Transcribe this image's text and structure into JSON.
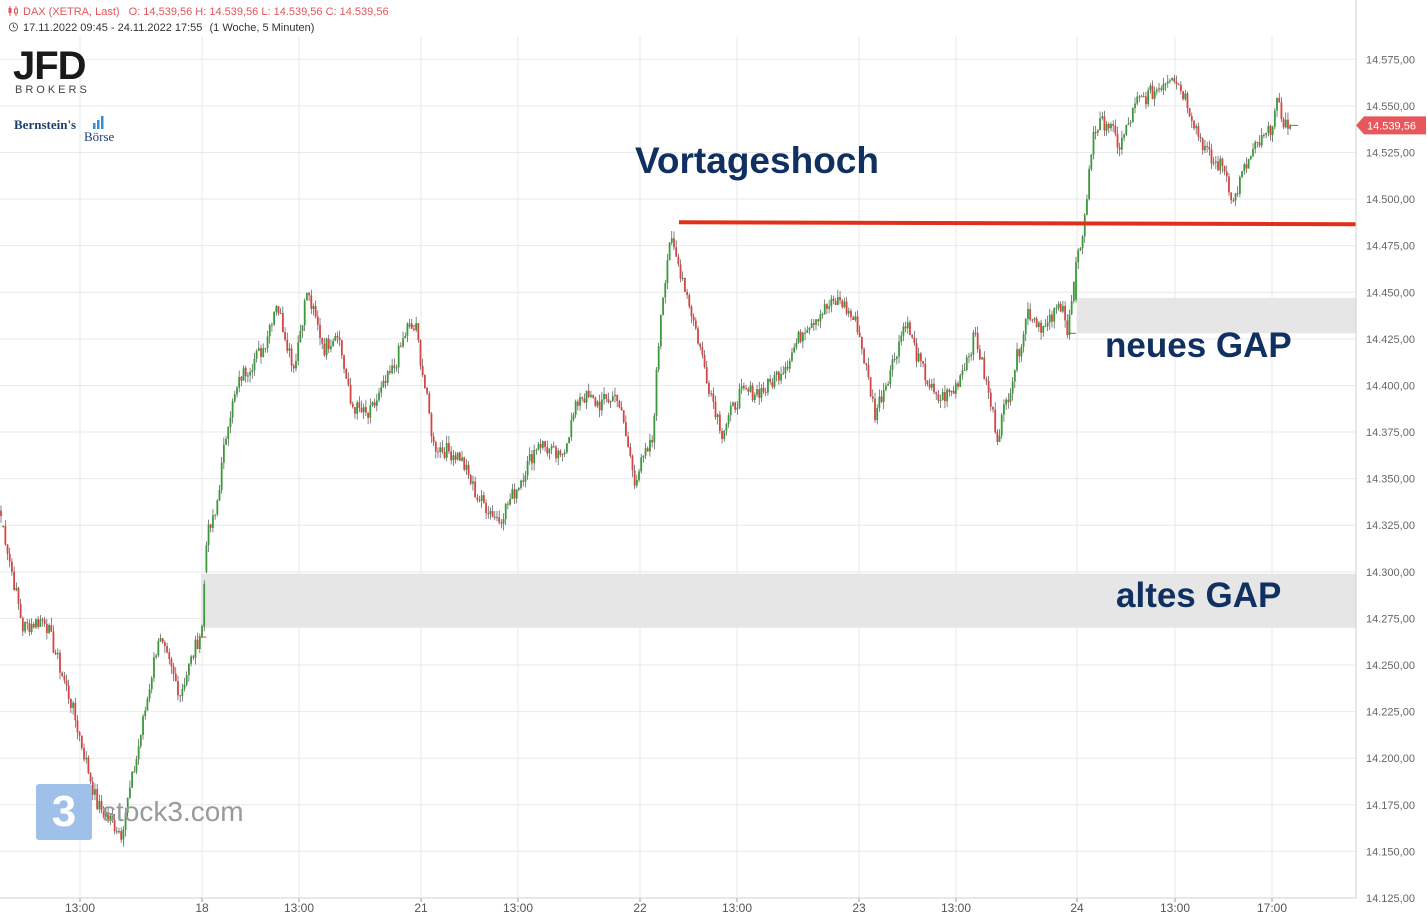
{
  "header": {
    "instrument": "DAX (XETRA, Last)",
    "ohlc": "O: 14,539,56  H: 14.539,56  L: 14.539,56  C: 14.539,56",
    "range": "17.11.2022 09:45 - 24.11.2022 17:55",
    "interval": "(1 Woche, 5 Minuten)"
  },
  "logos": {
    "jfd": "JFD",
    "brokers": "BROKERS",
    "bernstein": "Bernstein's",
    "boerse": "Börse"
  },
  "watermark": {
    "badge": "3",
    "text": "stock3.com"
  },
  "annotations": {
    "vortageshoch": "Vortageshoch",
    "neues_gap": "neues GAP",
    "altes_gap": "altes GAP"
  },
  "colors": {
    "up": "#3a9a3a",
    "down": "#d64545",
    "resistance_line": "#e03018",
    "gap_zone": "#e6e6e6",
    "price_tag": "#e8575c",
    "annotation": "#0f3060",
    "grid": "#e9e9e9"
  },
  "chart_data": {
    "type": "candlestick",
    "title": "DAX (XETRA, Last)",
    "ylim": [
      14125,
      14587.5
    ],
    "y_ticks": [
      "14.575,00",
      "14.550,00",
      "14.525,00",
      "14.500,00",
      "14.475,00",
      "14.450,00",
      "14.425,00",
      "14.400,00",
      "14.375,00",
      "14.350,00",
      "14.325,00",
      "14.300,00",
      "14.275,00",
      "14.250,00",
      "14.225,00",
      "14.200,00",
      "14.175,00",
      "14.150,00",
      "14.125,00"
    ],
    "x_ticks": [
      "13:00",
      "18",
      "13:00",
      "21",
      "13:00",
      "22",
      "13:00",
      "23",
      "13:00",
      "24",
      "13:00",
      "17:00"
    ],
    "last_price": 14539.56,
    "last_price_label": "14.539,56",
    "resistance_level": 14487,
    "gaps": [
      {
        "name": "neues GAP",
        "from": 14428,
        "to": 14447
      },
      {
        "name": "altes GAP",
        "from": 14270,
        "to": 14299
      }
    ],
    "path_anchors": [
      {
        "idx": 0,
        "price": 14330
      },
      {
        "idx": 10,
        "price": 14270
      },
      {
        "idx": 20,
        "price": 14275
      },
      {
        "idx": 32,
        "price": 14230
      },
      {
        "idx": 44,
        "price": 14175
      },
      {
        "idx": 55,
        "price": 14160
      },
      {
        "idx": 62,
        "price": 14200
      },
      {
        "idx": 72,
        "price": 14265
      },
      {
        "idx": 82,
        "price": 14235
      },
      {
        "idx": 92,
        "price": 14270
      },
      {
        "idx": 94,
        "price": 14318
      },
      {
        "idx": 98,
        "price": 14330
      },
      {
        "idx": 104,
        "price": 14382
      },
      {
        "idx": 110,
        "price": 14405
      },
      {
        "idx": 120,
        "price": 14420
      },
      {
        "idx": 126,
        "price": 14445
      },
      {
        "idx": 134,
        "price": 14410
      },
      {
        "idx": 140,
        "price": 14450
      },
      {
        "idx": 148,
        "price": 14420
      },
      {
        "idx": 154,
        "price": 14430
      },
      {
        "idx": 160,
        "price": 14390
      },
      {
        "idx": 168,
        "price": 14383
      },
      {
        "idx": 180,
        "price": 14410
      },
      {
        "idx": 186,
        "price": 14431
      },
      {
        "idx": 190,
        "price": 14430
      },
      {
        "idx": 198,
        "price": 14368
      },
      {
        "idx": 210,
        "price": 14362
      },
      {
        "idx": 218,
        "price": 14340
      },
      {
        "idx": 228,
        "price": 14328
      },
      {
        "idx": 236,
        "price": 14345
      },
      {
        "idx": 246,
        "price": 14370
      },
      {
        "idx": 256,
        "price": 14360
      },
      {
        "idx": 265,
        "price": 14395
      },
      {
        "idx": 274,
        "price": 14390
      },
      {
        "idx": 282,
        "price": 14395
      },
      {
        "idx": 290,
        "price": 14350
      },
      {
        "idx": 298,
        "price": 14370
      },
      {
        "idx": 302,
        "price": 14440
      },
      {
        "idx": 306,
        "price": 14478
      },
      {
        "idx": 312,
        "price": 14458
      },
      {
        "idx": 318,
        "price": 14430
      },
      {
        "idx": 324,
        "price": 14400
      },
      {
        "idx": 330,
        "price": 14375
      },
      {
        "idx": 338,
        "price": 14395
      },
      {
        "idx": 350,
        "price": 14398
      },
      {
        "idx": 360,
        "price": 14413
      },
      {
        "idx": 368,
        "price": 14432
      },
      {
        "idx": 376,
        "price": 14440
      },
      {
        "idx": 384,
        "price": 14446
      },
      {
        "idx": 392,
        "price": 14432
      },
      {
        "idx": 400,
        "price": 14385
      },
      {
        "idx": 408,
        "price": 14412
      },
      {
        "idx": 414,
        "price": 14435
      },
      {
        "idx": 420,
        "price": 14413
      },
      {
        "idx": 428,
        "price": 14392
      },
      {
        "idx": 436,
        "price": 14397
      },
      {
        "idx": 446,
        "price": 14427
      },
      {
        "idx": 452,
        "price": 14395
      },
      {
        "idx": 456,
        "price": 14373
      },
      {
        "idx": 462,
        "price": 14400
      },
      {
        "idx": 470,
        "price": 14440
      },
      {
        "idx": 478,
        "price": 14430
      },
      {
        "idx": 486,
        "price": 14446
      },
      {
        "idx": 488,
        "price": 14427
      },
      {
        "idx": 492,
        "price": 14462
      },
      {
        "idx": 496,
        "price": 14490
      },
      {
        "idx": 500,
        "price": 14537
      },
      {
        "idx": 506,
        "price": 14542
      },
      {
        "idx": 512,
        "price": 14528
      },
      {
        "idx": 520,
        "price": 14552
      },
      {
        "idx": 528,
        "price": 14558
      },
      {
        "idx": 536,
        "price": 14568
      },
      {
        "idx": 542,
        "price": 14555
      },
      {
        "idx": 548,
        "price": 14535
      },
      {
        "idx": 554,
        "price": 14520
      },
      {
        "idx": 560,
        "price": 14517
      },
      {
        "idx": 564,
        "price": 14498
      },
      {
        "idx": 568,
        "price": 14513
      },
      {
        "idx": 574,
        "price": 14527
      },
      {
        "idx": 580,
        "price": 14535
      },
      {
        "idx": 584,
        "price": 14550
      },
      {
        "idx": 588,
        "price": 14540
      },
      {
        "idx": 590,
        "price": 14539.56
      }
    ]
  }
}
